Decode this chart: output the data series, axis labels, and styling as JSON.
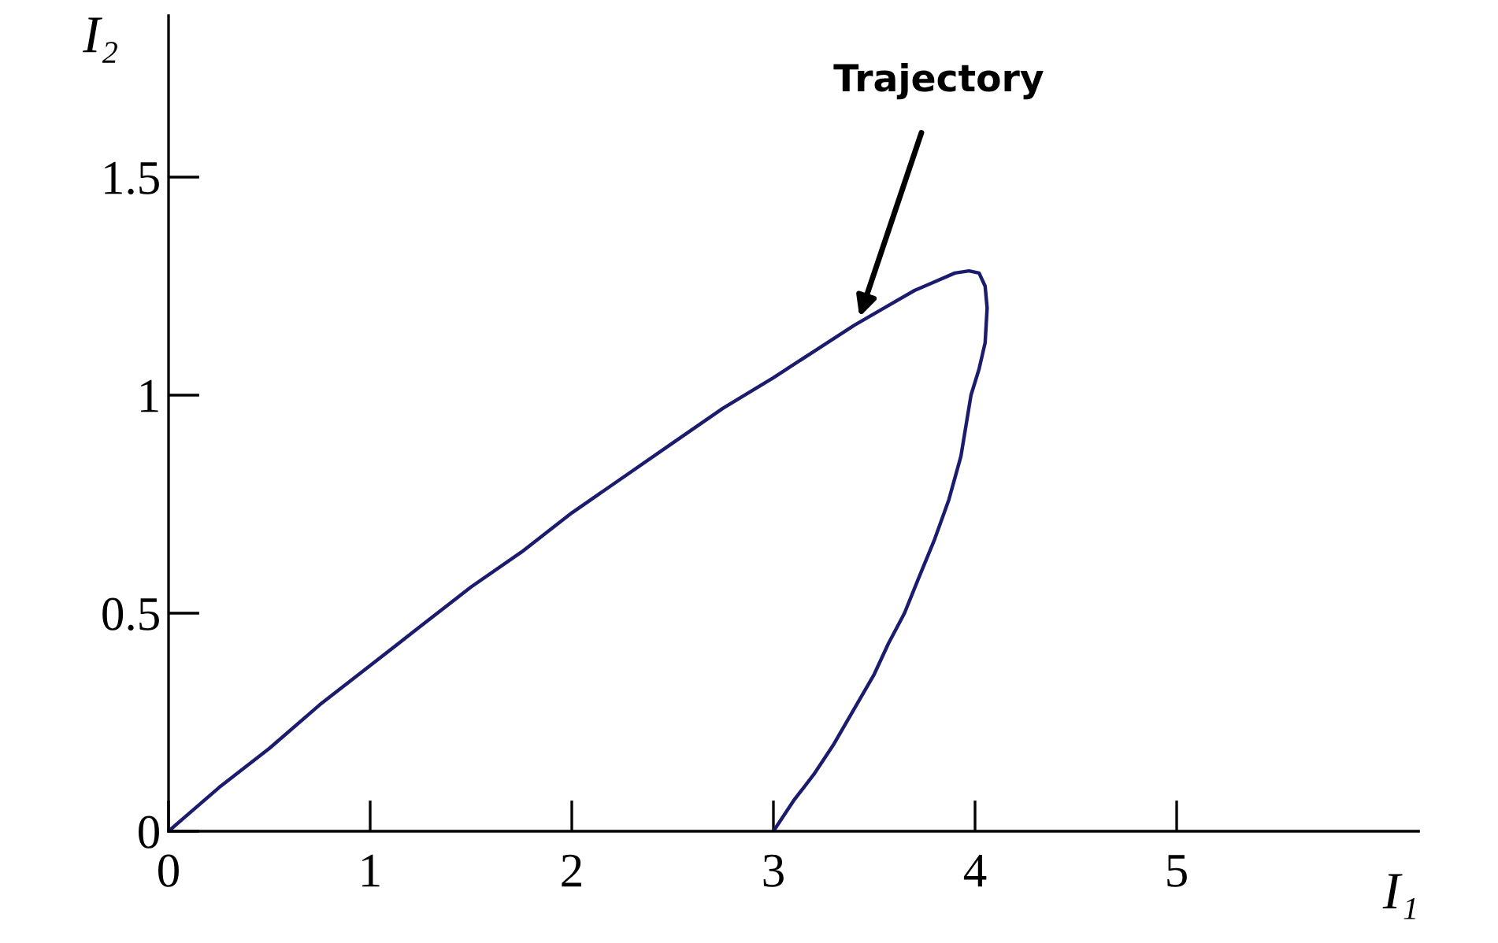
{
  "chart_data": {
    "type": "line",
    "xlabel": "I₁",
    "ylabel": "I₂",
    "series": [
      {
        "color": "#1c1c6e",
        "x": [
          0,
          0.25,
          0.5,
          0.75,
          1,
          1.25,
          1.5,
          1.75,
          2,
          2.25,
          2.5,
          2.75,
          3,
          3.2,
          3.4,
          3.55,
          3.7,
          3.8,
          3.9,
          3.97,
          4.02,
          4.05,
          4.06,
          4.05,
          4.02,
          3.98,
          3.93,
          3.87,
          3.8,
          3.72,
          3.65,
          3.57,
          3.5,
          3.4,
          3.3,
          3.2,
          3.1,
          3.0
        ],
        "values": [
          0,
          0.1,
          0.19,
          0.29,
          0.38,
          0.47,
          0.56,
          0.64,
          0.73,
          0.81,
          0.89,
          0.97,
          1.04,
          1.1,
          1.16,
          1.2,
          1.24,
          1.26,
          1.28,
          1.285,
          1.28,
          1.25,
          1.2,
          1.12,
          1.06,
          1.0,
          0.86,
          0.76,
          0.67,
          0.58,
          0.5,
          0.43,
          0.36,
          0.28,
          0.2,
          0.13,
          0.07,
          0
        ]
      }
    ],
    "xlim": [
      0,
      6.2
    ],
    "ylim": [
      0,
      1.87
    ],
    "xticks": [
      0,
      1,
      2,
      3,
      4,
      5
    ],
    "yticks": [
      0,
      0.5,
      1,
      1.5
    ],
    "grid": false,
    "legend": false,
    "marker": "none",
    "line_style": "solid",
    "annotations": [
      {
        "text": "Trajectory",
        "x": 3.42,
        "y": 1.17
      }
    ]
  }
}
